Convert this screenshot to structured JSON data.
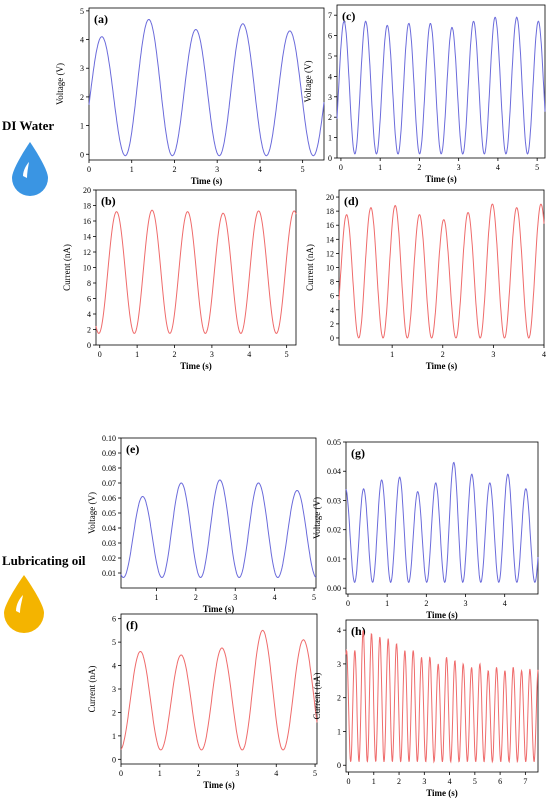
{
  "groups": {
    "water": {
      "label": "DI Water",
      "drop_color": "#3a95e3"
    },
    "oil": {
      "label": "Lubricating oil",
      "drop_color": "#f4b400"
    }
  },
  "colors": {
    "voltage": "#6b6bdb",
    "current": "#ef6b6b"
  },
  "chart_data": [
    {
      "id": "a",
      "panel_label": "(a)",
      "type": "line",
      "xlabel": "Time (s)",
      "ylabel": "Voltage (V)",
      "xlim": [
        0,
        5.5
      ],
      "ylim": [
        -0.2,
        5.1
      ],
      "xticks": [
        0,
        1,
        2,
        3,
        4,
        5
      ],
      "yticks": [
        0,
        1,
        2,
        3,
        4,
        5
      ],
      "series": [
        {
          "color_key": "voltage",
          "period": 1.1,
          "phase": 0.3,
          "low": -0.05,
          "peaks": [
            4.1,
            4.7,
            4.35,
            4.55,
            4.3
          ],
          "x": [
            0,
            0.3,
            0.85,
            1.4,
            1.95,
            2.5,
            3.05,
            3.6,
            4.15,
            4.7,
            5.25,
            5.45
          ],
          "y": [
            1.8,
            4.1,
            0.0,
            4.7,
            0.0,
            4.35,
            0.3,
            4.55,
            0.0,
            4.3,
            -0.1,
            2.2
          ]
        }
      ]
    },
    {
      "id": "b",
      "panel_label": "(b)",
      "type": "line",
      "xlabel": "Time (s)",
      "ylabel": "Current (nA)",
      "xlim": [
        -0.1,
        5.25
      ],
      "ylim": [
        0,
        20
      ],
      "xticks": [
        0,
        1,
        2,
        3,
        4,
        5
      ],
      "yticks": [
        0,
        2,
        4,
        6,
        8,
        10,
        12,
        14,
        16,
        18,
        20
      ],
      "series": [
        {
          "color_key": "current",
          "period": 0.95,
          "phase": 0.45,
          "low": 1.5,
          "peaks": [
            17.2,
            17.4,
            17.2,
            17.0,
            17.3
          ],
          "x": [
            0,
            0.45,
            0.95,
            1.4,
            1.95,
            2.35,
            2.85,
            3.3,
            3.8,
            4.25,
            4.75,
            5.15
          ],
          "y": [
            8.5,
            17.2,
            1.3,
            17.4,
            2.3,
            17.2,
            2.0,
            17.0,
            2.2,
            17.3,
            2.3,
            12.2
          ]
        }
      ]
    },
    {
      "id": "c",
      "panel_label": "(c)",
      "type": "line",
      "xlabel": "Time (s)",
      "ylabel": "Voltage (V)",
      "xlim": [
        -0.1,
        5.2
      ],
      "ylim": [
        0,
        7.5
      ],
      "xticks": [
        0,
        1,
        2,
        3,
        4,
        5
      ],
      "yticks": [
        0,
        1,
        2,
        3,
        4,
        5,
        6,
        7
      ],
      "series": [
        {
          "color_key": "voltage",
          "period": 0.55,
          "phase": 0.08,
          "low": 0.2,
          "peaks": [
            6.7,
            6.7,
            6.5,
            6.6,
            6.6,
            6.4,
            6.7,
            6.9,
            6.9,
            6.7,
            6.4,
            6.8,
            6.9
          ],
          "x": [],
          "y": []
        }
      ]
    },
    {
      "id": "d",
      "panel_label": "(d)",
      "type": "line",
      "xlabel": "Time (s)",
      "ylabel": "Current (nA)",
      "xlim": [
        -0.05,
        4.0
      ],
      "ylim": [
        -1,
        21
      ],
      "xticks": [
        1,
        2,
        3,
        4
      ],
      "yticks": [
        0,
        2,
        4,
        6,
        8,
        10,
        12,
        14,
        16,
        18,
        20
      ],
      "series": [
        {
          "color_key": "current",
          "period": 0.48,
          "phase": 0.1,
          "low": 0.0,
          "peaks": [
            17.5,
            18.5,
            18.8,
            17.5,
            16.8,
            17.8,
            19.0,
            18.5,
            19.0,
            18.3,
            18.6
          ],
          "x": [],
          "y": []
        }
      ]
    },
    {
      "id": "e",
      "panel_label": "(e)",
      "type": "line",
      "xlabel": "Time (s)",
      "ylabel": "Voltage (V)",
      "xlim": [
        0.1,
        5.05
      ],
      "ylim": [
        0,
        0.1
      ],
      "xticks": [
        1,
        2,
        3,
        4,
        5
      ],
      "yticks": [
        0.01,
        0.02,
        0.03,
        0.04,
        0.05,
        0.06,
        0.07,
        0.08,
        0.09,
        0.1
      ],
      "series": [
        {
          "color_key": "voltage",
          "period": 0.98,
          "phase": 0.65,
          "low": 0.007,
          "peaks": [
            0.061,
            0.07,
            0.072,
            0.07,
            0.065
          ],
          "x": [],
          "y": []
        }
      ]
    },
    {
      "id": "f",
      "panel_label": "(f)",
      "type": "line",
      "xlabel": "Time (s)",
      "ylabel": "Current (nA)",
      "xlim": [
        0,
        5.05
      ],
      "ylim": [
        -0.2,
        6.2
      ],
      "xticks": [
        0,
        1,
        2,
        3,
        4,
        5
      ],
      "yticks": [
        0,
        1,
        2,
        3,
        4,
        5,
        6
      ],
      "series": [
        {
          "color_key": "current",
          "period": 1.05,
          "phase": 0.5,
          "low": 0.4,
          "peaks": [
            4.6,
            4.45,
            4.75,
            5.5,
            5.1
          ],
          "x": [],
          "y": []
        }
      ]
    },
    {
      "id": "g",
      "panel_label": "(g)",
      "type": "line",
      "xlabel": "Time (s)",
      "ylabel": "Voltage (V)",
      "xlim": [
        -0.05,
        4.85
      ],
      "ylim": [
        -0.002,
        0.05
      ],
      "xticks": [
        0,
        1,
        2,
        3,
        4
      ],
      "yticks": [
        0.0,
        0.01,
        0.02,
        0.03,
        0.04,
        0.05
      ],
      "series": [
        {
          "color_key": "voltage",
          "period": 0.46,
          "phase": 0.4,
          "low": 0.002,
          "peaks": [
            0.034,
            0.037,
            0.038,
            0.033,
            0.036,
            0.043,
            0.039,
            0.036,
            0.039,
            0.034
          ],
          "x": [],
          "y": []
        }
      ]
    },
    {
      "id": "h",
      "panel_label": "(h)",
      "type": "line",
      "xlabel": "Time (s)",
      "ylabel": "Current (nA)",
      "xlim": [
        -0.1,
        7.5
      ],
      "ylim": [
        -0.2,
        4.3
      ],
      "xticks": [
        0,
        1,
        2,
        3,
        4,
        5,
        6,
        7
      ],
      "yticks": [
        0,
        1,
        2,
        3,
        4
      ],
      "series": [
        {
          "color_key": "current",
          "period": 0.33,
          "phase": 0.25,
          "low": 0.1,
          "peaks": [
            3.4,
            4.0,
            3.9,
            3.8,
            3.75,
            3.6,
            3.4,
            3.4,
            3.2,
            3.2,
            3.0,
            3.2,
            3.1,
            3.0,
            2.9,
            3.0,
            2.8,
            2.9,
            2.8,
            2.9,
            2.8,
            2.85
          ],
          "x": [],
          "y": []
        }
      ]
    }
  ]
}
